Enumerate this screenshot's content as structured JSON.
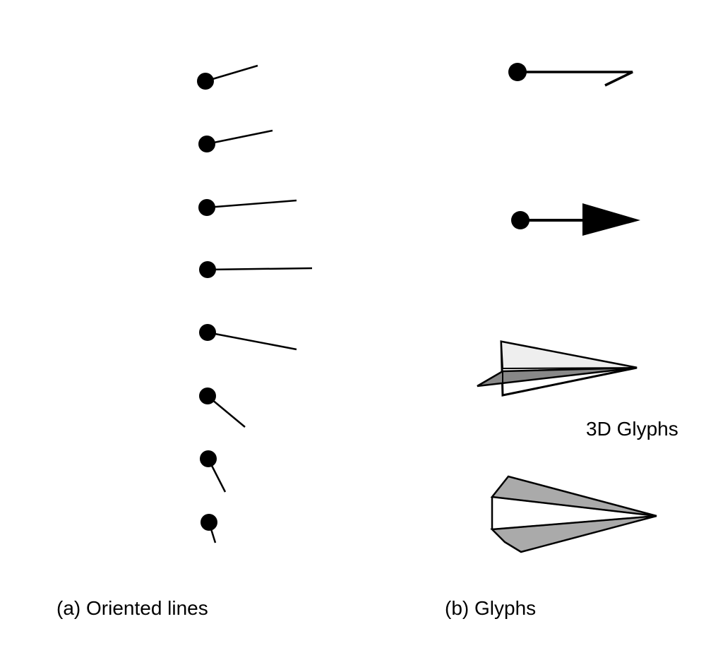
{
  "captions": {
    "oriented_lines": "(a) Oriented lines",
    "glyphs": "(b) Glyphs"
  },
  "glyph_label": "3D Glyphs",
  "colors": {
    "ink": "#000000",
    "glyph_fill_gray": "#aaaaaa",
    "glyph_fill_light": "#eeeeee"
  }
}
